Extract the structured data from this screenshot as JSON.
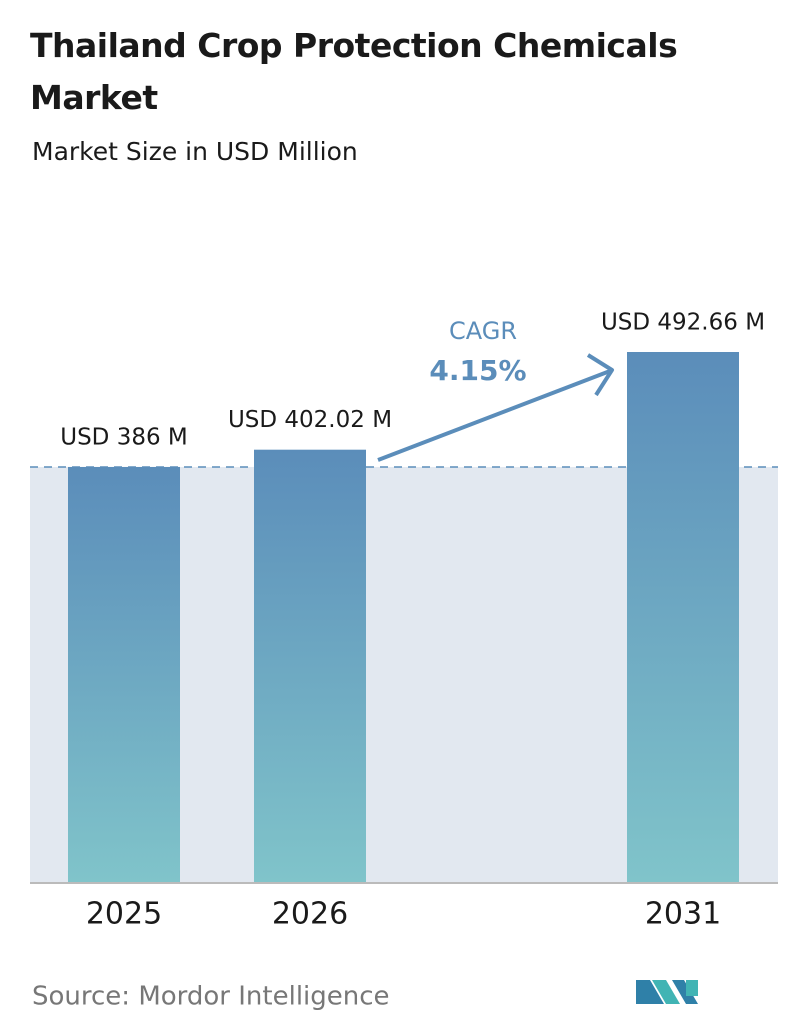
{
  "chart_data": {
    "type": "bar",
    "title": "Thailand Crop Protection Chemicals Market",
    "subtitle": "Market Size in USD Million",
    "categories": [
      "2025",
      "2026",
      "2031"
    ],
    "values": [
      386,
      402.02,
      492.66
    ],
    "value_labels": [
      "USD 386 M",
      "USD 402.02 M",
      "USD 492.66 M"
    ],
    "color": "#5b8dba",
    "annotation": {
      "label": "CAGR",
      "value": "4.15%"
    },
    "source": "Source:  Mordor Intelligence"
  }
}
